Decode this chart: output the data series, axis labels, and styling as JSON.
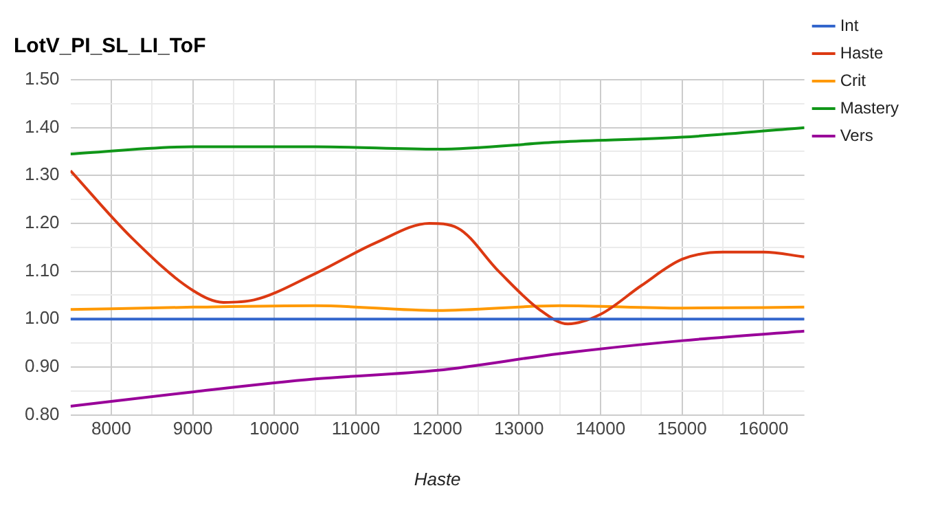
{
  "chart_data": {
    "type": "line",
    "title": "LotV_PI_SL_LI_ToF",
    "xlabel": "Haste",
    "xlim": [
      7500,
      16500
    ],
    "xticks": [
      {
        "value": 8500,
        "label": null
      },
      {
        "value": 9500,
        "label": null
      },
      {
        "value": 10500,
        "label": null
      },
      {
        "value": 11500,
        "label": null
      },
      {
        "value": 12500,
        "label": null
      },
      {
        "value": 13500,
        "label": null
      },
      {
        "value": 14500,
        "label": null
      },
      {
        "value": 15500,
        "label": null
      },
      8000,
      9000,
      10000,
      11000,
      12000,
      13000,
      14000,
      15000,
      16000
    ],
    "ylim": [
      0.8,
      1.5
    ],
    "yticks": [
      {
        "value": 0.85,
        "label": null
      },
      {
        "value": 0.95,
        "label": null
      },
      {
        "value": 1.05,
        "label": null
      },
      {
        "value": 1.15,
        "label": null
      },
      {
        "value": 1.25,
        "label": null
      },
      {
        "value": 1.35,
        "label": null
      },
      {
        "value": 1.45,
        "label": null
      },
      {
        "value": 0.8,
        "label": "0.80"
      },
      {
        "value": 0.9,
        "label": "0.90"
      },
      {
        "value": 1.0,
        "label": "1.00"
      },
      {
        "value": 1.1,
        "label": "1.10"
      },
      {
        "value": 1.2,
        "label": "1.20"
      },
      {
        "value": 1.3,
        "label": "1.30"
      },
      {
        "value": 1.4,
        "label": "1.40"
      },
      {
        "value": 1.5,
        "label": "1.50"
      }
    ],
    "grid": true,
    "legend": "right",
    "marker": "none",
    "line_style": "solid",
    "series": [
      {
        "name": "Int",
        "color": "#3366cc",
        "x": [
          7500,
          9000,
          10500,
          12000,
          13500,
          15000,
          16500
        ],
        "values": [
          1.0,
          1.0,
          1.0,
          1.0,
          1.0,
          1.0,
          1.0
        ]
      },
      {
        "name": "Haste",
        "color": "#dc3912",
        "x": [
          7500,
          8250,
          9000,
          9375,
          9750,
          10500,
          11250,
          11900,
          12250,
          12750,
          13250,
          13600,
          14000,
          14500,
          15000,
          15500,
          16000,
          16500
        ],
        "values": [
          1.31,
          1.17,
          1.06,
          1.035,
          1.04,
          1.095,
          1.16,
          1.2,
          1.19,
          1.1,
          1.02,
          0.99,
          1.01,
          1.07,
          1.125,
          1.14,
          1.14,
          1.13
        ]
      },
      {
        "name": "Crit",
        "color": "#ff9900",
        "x": [
          7500,
          9000,
          10500,
          12000,
          13500,
          15000,
          16500
        ],
        "values": [
          1.02,
          1.025,
          1.028,
          1.018,
          1.028,
          1.023,
          1.025
        ]
      },
      {
        "name": "Mastery",
        "color": "#109618",
        "x": [
          7500,
          9000,
          10500,
          12000,
          13500,
          15000,
          16500
        ],
        "values": [
          1.345,
          1.36,
          1.36,
          1.355,
          1.37,
          1.38,
          1.4
        ]
      },
      {
        "name": "Vers",
        "color": "#990099",
        "x": [
          7500,
          9000,
          10500,
          12000,
          13500,
          15000,
          16500
        ],
        "values": [
          0.818,
          0.848,
          0.875,
          0.893,
          0.928,
          0.955,
          0.975
        ]
      }
    ]
  }
}
